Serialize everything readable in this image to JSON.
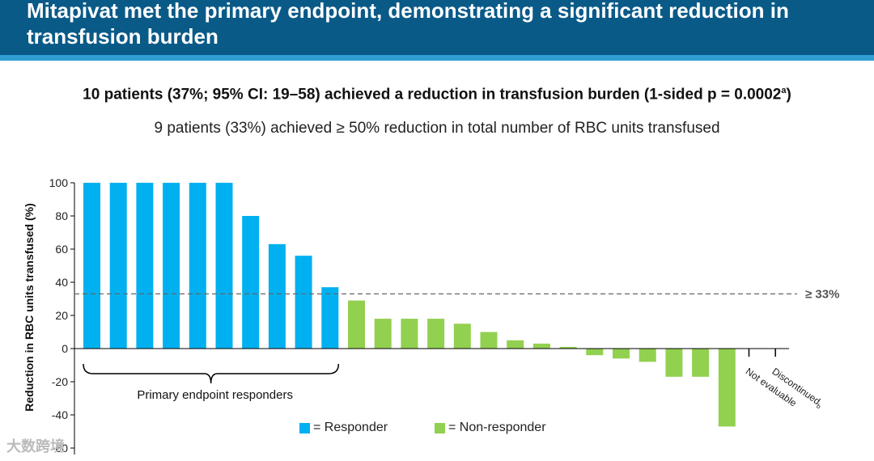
{
  "slide": {
    "title": "Mitapivat met the primary endpoint, demonstrating a significant reduction in transfusion burden",
    "headline": "10 patients (37%; 95% CI: 19–58) achieved a reduction in transfusion burden (1-sided p = 0.0002",
    "headline_sup": "a",
    "headline_end": ")",
    "subheadline": "9 patients (33%) achieved ≥ 50% reduction in total number of RBC units transfused"
  },
  "chart_data": {
    "type": "bar",
    "title": "",
    "xlabel": "",
    "ylabel": "Reduction in RBC units transfused (%)",
    "ylim": [
      -60,
      100
    ],
    "yticks": [
      100,
      80,
      60,
      40,
      20,
      0,
      -20,
      -40,
      -60
    ],
    "series": [
      {
        "name": "Responder",
        "color": "#00b0f0",
        "values": [
          100,
          100,
          100,
          100,
          100,
          100,
          80,
          63,
          56,
          37
        ]
      },
      {
        "name": "Non-responder",
        "color": "#92d050",
        "values": [
          29,
          18,
          18,
          18,
          15,
          10,
          5,
          3,
          1,
          -4,
          -6,
          -8,
          -17,
          -17,
          -47
        ]
      }
    ],
    "threshold": {
      "value": 33,
      "label": "≥ 33%"
    },
    "bracket_label": "Primary endpoint responders",
    "extra_categories": [
      {
        "label": "Not evaluable",
        "note": ""
      },
      {
        "label": "Discontinued",
        "note": "b"
      }
    ],
    "legend": [
      {
        "label": "= Responder",
        "color": "#00b0f0"
      },
      {
        "label": "= Non-responder",
        "color": "#92d050"
      }
    ]
  },
  "watermark": "大数跨境"
}
